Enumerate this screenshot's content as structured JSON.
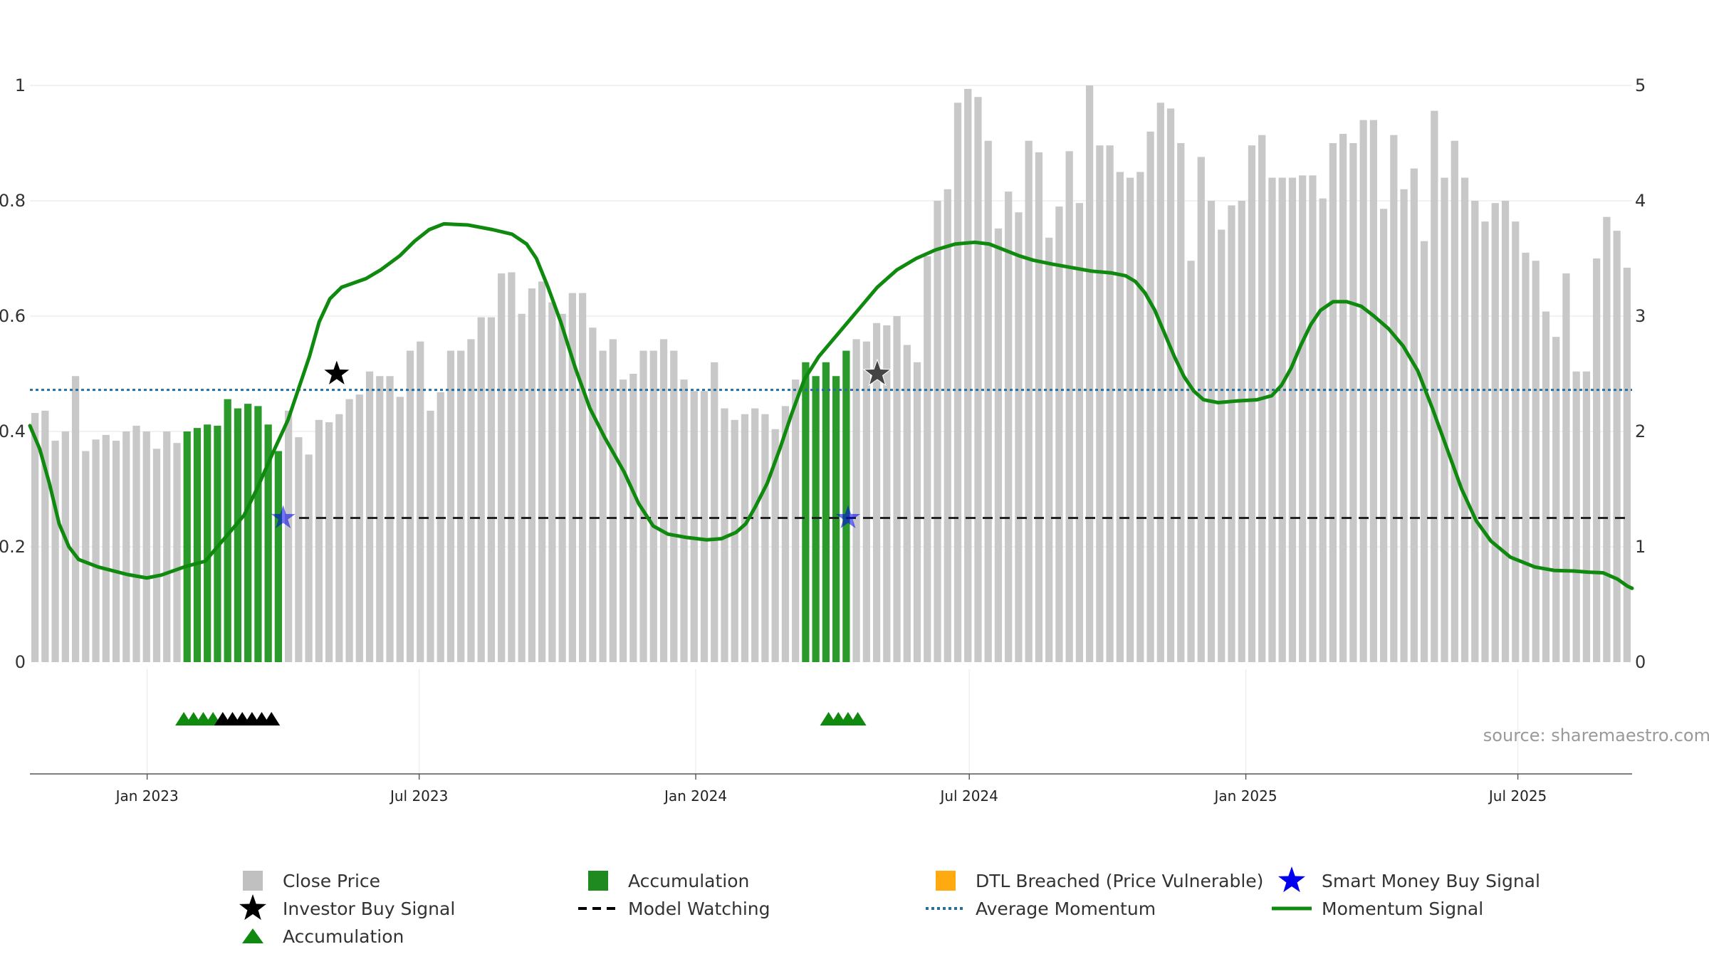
{
  "chart_data": {
    "type": "bar",
    "title": "",
    "source": "source: sharemaestro.com",
    "x_dates": [
      "2022-10-15",
      "2025-09-15"
    ],
    "left_axis": {
      "ylim": [
        0,
        1.05
      ],
      "ticks": [
        0,
        0.2,
        0.4,
        0.6,
        0.8,
        1
      ],
      "tick_labels": [
        "0",
        "0.2",
        "0.4",
        "0.6",
        "0.8",
        "1"
      ]
    },
    "right_axis": {
      "ylim": [
        0,
        5
      ],
      "ticks": [
        0,
        1,
        2,
        3,
        4,
        5
      ],
      "tick_labels": [
        "0",
        "1",
        "2",
        "3",
        "4",
        "5"
      ]
    },
    "x_ticks": [
      {
        "date": "2023-01-01",
        "label": "Jan 2023"
      },
      {
        "date": "2023-07-01",
        "label": "Jul 2023"
      },
      {
        "date": "2024-01-01",
        "label": "Jan 2024"
      },
      {
        "date": "2024-07-01",
        "label": "Jul 2024"
      },
      {
        "date": "2025-01-01",
        "label": "Jan 2025"
      },
      {
        "date": "2025-07-01",
        "label": "Jul 2025"
      }
    ],
    "close_price": [
      2.16,
      2.18,
      1.92,
      2.0,
      2.48,
      1.83,
      1.93,
      1.97,
      1.92,
      2.0,
      2.05,
      2.0,
      1.85,
      2.0,
      1.9,
      2.0,
      2.03,
      2.06,
      2.05,
      2.28,
      2.2,
      2.24,
      2.22,
      2.06,
      1.83,
      2.18,
      1.95,
      1.8,
      2.1,
      2.08,
      2.15,
      2.28,
      2.32,
      2.52,
      2.48,
      2.48,
      2.3,
      2.7,
      2.78,
      2.18,
      2.34,
      2.7,
      2.7,
      2.8,
      2.99,
      2.99,
      3.37,
      3.38,
      3.02,
      3.24,
      3.3,
      3.12,
      3.02,
      3.2,
      3.2,
      2.9,
      2.7,
      2.8,
      2.45,
      2.5,
      2.7,
      2.7,
      2.8,
      2.7,
      2.45,
      2.35,
      2.35,
      2.6,
      2.2,
      2.1,
      2.15,
      2.2,
      2.15,
      2.02,
      2.22,
      2.45,
      2.6,
      2.48,
      2.6,
      2.48,
      2.7,
      2.8,
      2.78,
      2.94,
      2.92,
      3.0,
      2.75,
      2.6,
      3.52,
      4.0,
      4.1,
      4.85,
      4.97,
      4.9,
      4.52,
      3.76,
      4.08,
      3.9,
      4.52,
      4.42,
      3.68,
      3.95,
      4.43,
      3.98,
      5.0,
      4.48,
      4.48,
      4.25,
      4.2,
      4.25,
      4.6,
      4.85,
      4.8,
      4.5,
      3.48,
      4.38,
      4.0,
      3.75,
      3.96,
      4.0,
      4.48,
      4.57,
      4.2,
      4.2,
      4.2,
      4.22,
      4.22,
      4.02,
      4.5,
      4.58,
      4.5,
      4.7,
      4.7,
      3.93,
      4.57,
      4.1,
      4.28,
      3.65,
      4.78,
      4.2,
      4.52,
      4.2,
      4.0,
      3.82,
      3.98,
      4.0,
      3.82,
      3.55,
      3.48,
      3.04,
      2.82,
      3.37,
      2.52,
      2.52,
      3.5,
      3.86,
      3.74,
      3.42
    ],
    "accumulation_bar_indices": [
      15,
      16,
      17,
      18,
      19,
      20,
      21,
      22,
      23,
      24,
      76,
      77,
      78,
      79,
      80
    ],
    "momentum_signal": [
      [
        0.0,
        0.41
      ],
      [
        0.01,
        0.37
      ],
      [
        0.02,
        0.31
      ],
      [
        0.03,
        0.24
      ],
      [
        0.04,
        0.2
      ],
      [
        0.05,
        0.178
      ],
      [
        0.07,
        0.165
      ],
      [
        0.1,
        0.152
      ],
      [
        0.12,
        0.146
      ],
      [
        0.135,
        0.151
      ],
      [
        0.16,
        0.166
      ],
      [
        0.18,
        0.175
      ],
      [
        0.2,
        0.215
      ],
      [
        0.22,
        0.255
      ],
      [
        0.233,
        0.3
      ],
      [
        0.25,
        0.365
      ],
      [
        0.265,
        0.42
      ],
      [
        0.275,
        0.47
      ],
      [
        0.287,
        0.53
      ],
      [
        0.297,
        0.59
      ],
      [
        0.308,
        0.63
      ],
      [
        0.32,
        0.65
      ],
      [
        0.345,
        0.665
      ],
      [
        0.36,
        0.68
      ],
      [
        0.38,
        0.705
      ],
      [
        0.395,
        0.73
      ],
      [
        0.41,
        0.75
      ],
      [
        0.425,
        0.76
      ],
      [
        0.45,
        0.758
      ],
      [
        0.475,
        0.75
      ],
      [
        0.495,
        0.742
      ],
      [
        0.51,
        0.725
      ],
      [
        0.52,
        0.7
      ],
      [
        0.532,
        0.65
      ],
      [
        0.545,
        0.59
      ],
      [
        0.56,
        0.51
      ],
      [
        0.575,
        0.44
      ],
      [
        0.59,
        0.39
      ],
      [
        0.61,
        0.33
      ],
      [
        0.625,
        0.275
      ],
      [
        0.64,
        0.236
      ],
      [
        0.655,
        0.222
      ],
      [
        0.675,
        0.216
      ],
      [
        0.695,
        0.212
      ],
      [
        0.71,
        0.214
      ],
      [
        0.725,
        0.225
      ],
      [
        0.735,
        0.24
      ],
      [
        0.745,
        0.27
      ],
      [
        0.757,
        0.31
      ],
      [
        0.77,
        0.37
      ],
      [
        0.782,
        0.43
      ],
      [
        0.795,
        0.49
      ],
      [
        0.81,
        0.53
      ],
      [
        0.825,
        0.56
      ],
      [
        0.84,
        0.59
      ],
      [
        0.855,
        0.62
      ],
      [
        0.87,
        0.65
      ],
      [
        0.89,
        0.68
      ],
      [
        0.91,
        0.7
      ],
      [
        0.93,
        0.715
      ],
      [
        0.95,
        0.725
      ],
      [
        0.97,
        0.728
      ],
      [
        0.985,
        0.725
      ],
      [
        1.0,
        0.715
      ],
      [
        1.015,
        0.705
      ],
      [
        1.03,
        0.697
      ],
      [
        1.05,
        0.69
      ],
      [
        1.07,
        0.684
      ],
      [
        1.09,
        0.678
      ],
      [
        1.11,
        0.675
      ],
      [
        1.125,
        0.67
      ],
      [
        1.135,
        0.66
      ],
      [
        1.145,
        0.64
      ],
      [
        1.155,
        0.61
      ],
      [
        1.165,
        0.57
      ],
      [
        1.175,
        0.53
      ],
      [
        1.185,
        0.495
      ],
      [
        1.195,
        0.47
      ],
      [
        1.205,
        0.455
      ],
      [
        1.22,
        0.45
      ],
      [
        1.24,
        0.453
      ],
      [
        1.26,
        0.455
      ],
      [
        1.275,
        0.462
      ],
      [
        1.285,
        0.48
      ],
      [
        1.295,
        0.51
      ],
      [
        1.305,
        0.55
      ],
      [
        1.315,
        0.585
      ],
      [
        1.325,
        0.61
      ],
      [
        1.338,
        0.625
      ],
      [
        1.352,
        0.625
      ],
      [
        1.367,
        0.617
      ],
      [
        1.38,
        0.6
      ],
      [
        1.395,
        0.578
      ],
      [
        1.41,
        0.548
      ],
      [
        1.425,
        0.505
      ],
      [
        1.44,
        0.44
      ],
      [
        1.455,
        0.37
      ],
      [
        1.47,
        0.3
      ],
      [
        1.485,
        0.245
      ],
      [
        1.5,
        0.21
      ],
      [
        1.52,
        0.182
      ],
      [
        1.545,
        0.165
      ],
      [
        1.565,
        0.159
      ],
      [
        1.585,
        0.158
      ],
      [
        1.6,
        0.156
      ],
      [
        1.615,
        0.155
      ],
      [
        1.63,
        0.144
      ],
      [
        1.64,
        0.132
      ],
      [
        1.645,
        0.128
      ]
    ],
    "average_momentum": 0.472,
    "model_watching_level": 0.25,
    "investor_buy_signals": [
      {
        "x": 0.315,
        "y": 0.5,
        "color": "#000000"
      },
      {
        "x": 0.87,
        "y": 0.5,
        "color": "#444444"
      }
    ],
    "smart_money_buy_signals": [
      {
        "x": 0.26,
        "y": 0.25
      },
      {
        "x": 0.84,
        "y": 0.25
      }
    ],
    "accumulation_triangles": [
      {
        "x": 0.158,
        "color": "#0f8a0f"
      },
      {
        "x": 0.168,
        "color": "#0f8a0f"
      },
      {
        "x": 0.178,
        "color": "#0f8a0f"
      },
      {
        "x": 0.188,
        "color": "#0f8a0f"
      },
      {
        "x": 0.198,
        "color": "#000000"
      },
      {
        "x": 0.208,
        "color": "#000000"
      },
      {
        "x": 0.218,
        "color": "#000000"
      },
      {
        "x": 0.228,
        "color": "#000000"
      },
      {
        "x": 0.238,
        "color": "#000000"
      },
      {
        "x": 0.248,
        "color": "#000000"
      },
      {
        "x": 0.82,
        "color": "#0f8a0f"
      },
      {
        "x": 0.83,
        "color": "#0f8a0f"
      },
      {
        "x": 0.84,
        "color": "#0f8a0f"
      },
      {
        "x": 0.85,
        "color": "#0f8a0f"
      }
    ],
    "colors": {
      "close_price": "#c8c8c8",
      "accumulation_bar": "#2a9a2a",
      "momentum_strong": "#0f8a0f",
      "momentum_faded": "#3d8f3d",
      "average_momentum": "#2a6f9a",
      "model_watching": "#222222",
      "smart_money": "#0000ee",
      "dtl": "#ffaa11"
    },
    "legend": [
      {
        "label": "Close Price",
        "marker": "square",
        "color": "#c0c0c0"
      },
      {
        "label": "Accumulation",
        "marker": "square",
        "color": "#1f8a1f"
      },
      {
        "label": "DTL Breached (Price Vulnerable)",
        "marker": "square",
        "color": "#ffaa11"
      },
      {
        "label": "Smart Money Buy Signal",
        "marker": "star",
        "color": "#0000ee"
      },
      {
        "label": "Investor Buy Signal",
        "marker": "star",
        "color": "#000000"
      },
      {
        "label": "Model Watching",
        "marker": "dash",
        "color": "#000000"
      },
      {
        "label": "Average Momentum",
        "marker": "dotted",
        "color": "#2a6f9a"
      },
      {
        "label": "Momentum Signal",
        "marker": "line",
        "color": "#0f8a0f"
      },
      {
        "label": "Accumulation",
        "marker": "triangle",
        "color": "#0f8a0f"
      }
    ]
  }
}
